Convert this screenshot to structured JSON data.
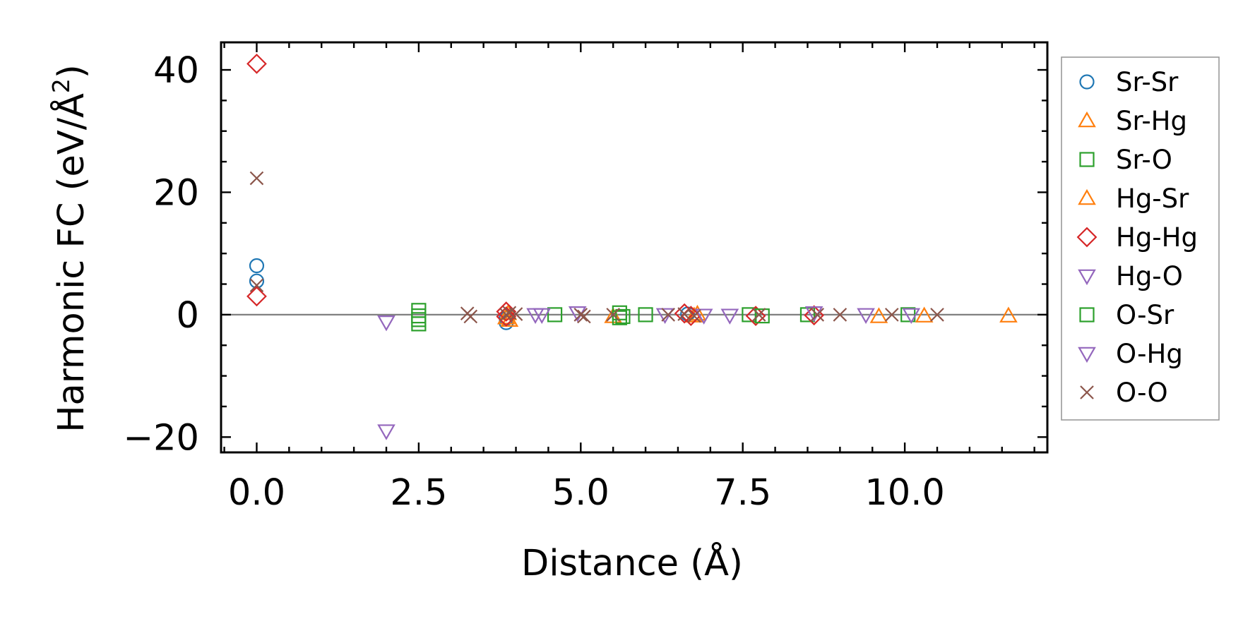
{
  "chart_data": {
    "type": "scatter",
    "title": "",
    "xlabel": "Distance (Å)",
    "ylabel": "Harmonic FC (eV/Å²)",
    "ylabel_parts": {
      "text": "Harmonic FC (eV/Å",
      "superscript": "2",
      "close": ")"
    },
    "xlim": [
      -0.55,
      12.2
    ],
    "ylim": [
      -22.5,
      44.5
    ],
    "xticks": [
      0.0,
      2.5,
      5.0,
      7.5,
      10.0
    ],
    "xtick_labels": [
      "0.0",
      "2.5",
      "5.0",
      "7.5",
      "10.0"
    ],
    "yticks": [
      -20,
      0,
      20,
      40
    ],
    "ytick_labels": [
      "−20",
      "0",
      "20",
      "40"
    ],
    "grid": false,
    "zero_line": true,
    "legend_position": "outside-right",
    "series": [
      {
        "name": "Sr-Sr",
        "marker": "circle",
        "color": "#1f77b4",
        "points": [
          [
            0.0,
            8.0
          ],
          [
            0.0,
            5.5
          ],
          [
            3.85,
            -1.3
          ],
          [
            3.85,
            -0.6
          ],
          [
            6.65,
            0.1
          ]
        ]
      },
      {
        "name": "Sr-Hg",
        "marker": "triangle-up",
        "color": "#ff7f0e",
        "points": [
          [
            3.85,
            -0.5
          ],
          [
            3.9,
            -0.9
          ],
          [
            5.5,
            -0.3
          ],
          [
            6.75,
            -0.2
          ],
          [
            9.6,
            -0.3
          ],
          [
            11.6,
            -0.2
          ]
        ]
      },
      {
        "name": "Sr-O",
        "marker": "square",
        "color": "#2ca02c",
        "points": [
          [
            2.5,
            0.7
          ],
          [
            2.5,
            -0.2
          ],
          [
            2.5,
            -0.8
          ],
          [
            2.5,
            -1.5
          ],
          [
            4.6,
            0.0
          ],
          [
            5.6,
            0.3
          ],
          [
            5.6,
            -0.5
          ],
          [
            6.0,
            0.0
          ],
          [
            7.6,
            0.0
          ],
          [
            8.5,
            0.0
          ],
          [
            10.05,
            0.0
          ]
        ]
      },
      {
        "name": "Hg-Sr",
        "marker": "triangle-up",
        "color": "#ff7f0e",
        "points": [
          [
            3.88,
            0.2
          ],
          [
            6.8,
            0.1
          ],
          [
            10.3,
            -0.2
          ]
        ]
      },
      {
        "name": "Hg-Hg",
        "marker": "diamond",
        "color": "#d62728",
        "points": [
          [
            0.0,
            41.0
          ],
          [
            0.0,
            3.0
          ],
          [
            3.85,
            0.5
          ],
          [
            3.85,
            -0.3
          ],
          [
            6.6,
            0.2
          ],
          [
            6.7,
            -0.2
          ],
          [
            7.7,
            -0.2
          ],
          [
            8.6,
            -0.1
          ]
        ]
      },
      {
        "name": "Hg-O",
        "marker": "triangle-down",
        "color": "#9467bd",
        "points": [
          [
            2.0,
            -1.2
          ],
          [
            2.0,
            -19.0
          ],
          [
            4.4,
            0.0
          ],
          [
            4.95,
            0.3
          ],
          [
            6.9,
            -0.1
          ],
          [
            7.3,
            -0.1
          ],
          [
            9.4,
            0.0
          ]
        ]
      },
      {
        "name": "O-Sr",
        "marker": "square",
        "color": "#2ca02c",
        "points": [
          [
            5.65,
            -0.3
          ],
          [
            7.8,
            -0.2
          ]
        ]
      },
      {
        "name": "O-Hg",
        "marker": "triangle-down",
        "color": "#9467bd",
        "points": [
          [
            4.3,
            0.0
          ],
          [
            6.3,
            0.0
          ],
          [
            8.6,
            0.3
          ],
          [
            10.1,
            0.0
          ]
        ]
      },
      {
        "name": "O-O",
        "marker": "x",
        "color": "#8c564b",
        "points": [
          [
            0.0,
            22.3
          ],
          [
            0.0,
            4.8
          ],
          [
            3.25,
            0.2
          ],
          [
            3.3,
            -0.3
          ],
          [
            3.85,
            0.0
          ],
          [
            3.9,
            0.3
          ],
          [
            4.0,
            0.1
          ],
          [
            5.0,
            0.0
          ],
          [
            5.05,
            -0.3
          ],
          [
            5.5,
            0.0
          ],
          [
            6.35,
            0.0
          ],
          [
            6.6,
            0.1
          ],
          [
            6.75,
            -0.2
          ],
          [
            7.75,
            0.0
          ],
          [
            8.65,
            0.0
          ],
          [
            9.0,
            0.0
          ],
          [
            9.8,
            0.0
          ],
          [
            10.5,
            0.0
          ]
        ]
      }
    ]
  }
}
